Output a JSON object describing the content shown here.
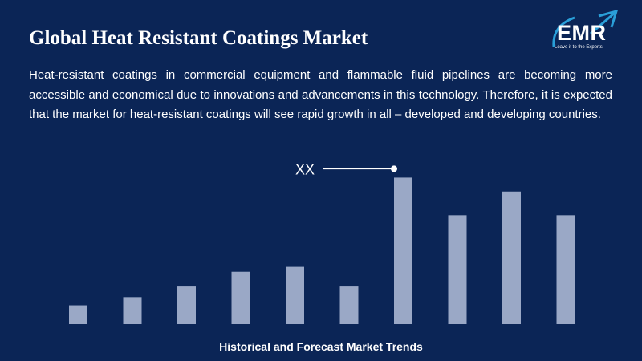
{
  "header": {
    "title": "Global Heat Resistant Coatings Market",
    "description": "Heat-resistant coatings in commercial equipment and flammable fluid pipelines are becoming more accessible and economical due to innovations and advancements in this technology. Therefore, it is expected that the market for heat-resistant coatings will see rapid growth in all – developed and developing countries."
  },
  "logo": {
    "text": "EMR",
    "tagline": "Leave it to the Experts!",
    "accent_color": "#2a9fd8"
  },
  "chart_data": {
    "type": "bar",
    "title": "Historical and Forecast Market Trends",
    "values": [
      2.3,
      3.3,
      4.6,
      6.4,
      7.0,
      4.6,
      17.9,
      13.3,
      16.2,
      13.3
    ],
    "ylim": [
      0,
      20
    ],
    "bar_color": "#9aa8c6",
    "annotation": {
      "label": "XX",
      "bar_index": 6
    }
  }
}
